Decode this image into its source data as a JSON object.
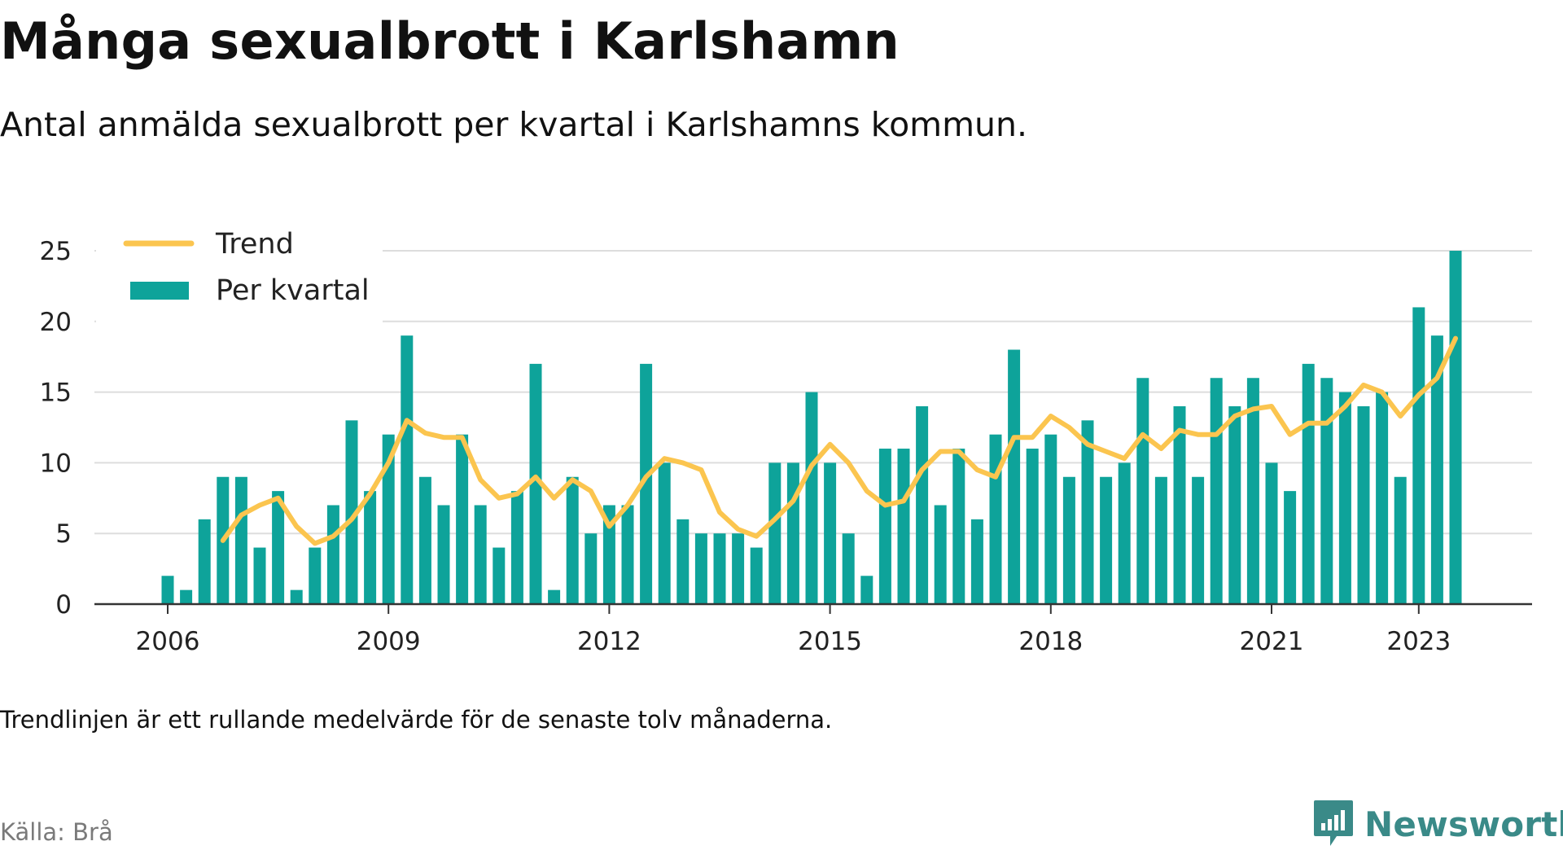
{
  "header": {
    "title": "Många sexualbrott i Karlshamn",
    "subtitle": "Antal anmälda sexualbrott per kvartal i Karlshamns kommun."
  },
  "footer": {
    "note": "Trendlinjen är ett rullande medelvärde för de senaste tolv månaderna.",
    "source": "Källa: Brå",
    "brand": "Newsworthy",
    "brand_icon": "newsworthy-logo-icon",
    "brand_color": "#3a8a88"
  },
  "chart_data": {
    "type": "bar",
    "title": "Många sexualbrott i Karlshamn",
    "subtitle": "Antal anmälda sexualbrott per kvartal i Karlshamns kommun.",
    "ylim": [
      0,
      25
    ],
    "yticks": [
      0,
      5,
      10,
      15,
      20,
      25
    ],
    "xtick_labels": [
      "2006",
      "2009",
      "2012",
      "2015",
      "2018",
      "2021",
      "2023"
    ],
    "xticks": [
      "2006 Q1",
      "2009 Q1",
      "2012 Q1",
      "2015 Q1",
      "2018 Q1",
      "2021 Q1",
      "2023 Q1"
    ],
    "grid": true,
    "legend_position": "top-left",
    "legend": [
      "Trend",
      "Per kvartal"
    ],
    "colors": {
      "bars": "#0ea39a",
      "trend": "#fbc54f",
      "grid": "#dddddd",
      "axis": "#333333"
    },
    "categories": [
      "2006 Q1",
      "2006 Q2",
      "2006 Q3",
      "2006 Q4",
      "2007 Q1",
      "2007 Q2",
      "2007 Q3",
      "2007 Q4",
      "2008 Q1",
      "2008 Q2",
      "2008 Q3",
      "2008 Q4",
      "2009 Q1",
      "2009 Q2",
      "2009 Q3",
      "2009 Q4",
      "2010 Q1",
      "2010 Q2",
      "2010 Q3",
      "2010 Q4",
      "2011 Q1",
      "2011 Q2",
      "2011 Q3",
      "2011 Q4",
      "2012 Q1",
      "2012 Q2",
      "2012 Q3",
      "2012 Q4",
      "2013 Q1",
      "2013 Q2",
      "2013 Q3",
      "2013 Q4",
      "2014 Q1",
      "2014 Q2",
      "2014 Q3",
      "2014 Q4",
      "2015 Q1",
      "2015 Q2",
      "2015 Q3",
      "2015 Q4",
      "2016 Q1",
      "2016 Q2",
      "2016 Q3",
      "2016 Q4",
      "2017 Q1",
      "2017 Q2",
      "2017 Q3",
      "2017 Q4",
      "2018 Q1",
      "2018 Q2",
      "2018 Q3",
      "2018 Q4",
      "2019 Q1",
      "2019 Q2",
      "2019 Q3",
      "2019 Q4",
      "2020 Q1",
      "2020 Q2",
      "2020 Q3",
      "2020 Q4",
      "2021 Q1",
      "2021 Q2",
      "2021 Q3",
      "2021 Q4",
      "2022 Q1",
      "2022 Q2",
      "2022 Q3",
      "2022 Q4",
      "2023 Q1",
      "2023 Q2",
      "2023 Q3"
    ],
    "series": [
      {
        "name": "Per kvartal",
        "type": "bar",
        "values": [
          2,
          1,
          6,
          9,
          9,
          4,
          8,
          1,
          4,
          7,
          13,
          8,
          12,
          19,
          9,
          7,
          12,
          7,
          4,
          8,
          17,
          1,
          9,
          5,
          7,
          7,
          17,
          10,
          6,
          5,
          5,
          5,
          4,
          10,
          10,
          15,
          10,
          5,
          2,
          11,
          11,
          14,
          7,
          11,
          6,
          12,
          18,
          11,
          12,
          9,
          13,
          9,
          10,
          16,
          9,
          14,
          9,
          16,
          14,
          16,
          10,
          8,
          17,
          16,
          15,
          14,
          15,
          9,
          21,
          19,
          25
        ]
      },
      {
        "name": "Trend",
        "type": "line",
        "values": [
          null,
          null,
          null,
          4.5,
          6.3,
          7.0,
          7.5,
          5.5,
          4.3,
          4.8,
          6.0,
          7.8,
          10.0,
          13.0,
          12.1,
          11.8,
          11.8,
          8.8,
          7.5,
          7.8,
          9.0,
          7.5,
          8.8,
          8.0,
          5.5,
          7.0,
          9.0,
          10.3,
          10.0,
          9.5,
          6.5,
          5.3,
          4.8,
          6.0,
          7.3,
          9.8,
          11.3,
          10.0,
          8.0,
          7.0,
          7.3,
          9.5,
          10.8,
          10.8,
          9.5,
          9.0,
          11.8,
          11.8,
          13.3,
          12.5,
          11.3,
          10.8,
          10.3,
          12.0,
          11.0,
          12.3,
          12.0,
          12.0,
          13.3,
          13.8,
          14.0,
          12.0,
          12.8,
          12.8,
          14.0,
          15.5,
          15.0,
          13.3,
          14.8,
          16.0,
          18.8
        ]
      }
    ]
  }
}
